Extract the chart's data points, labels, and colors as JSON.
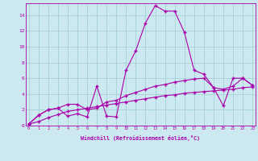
{
  "xlabel": "Windchill (Refroidissement éolien,°C)",
  "bg_color": "#cce8f0",
  "line_color": "#aa00aa",
  "x_values": [
    0,
    1,
    2,
    3,
    4,
    5,
    6,
    7,
    8,
    9,
    10,
    11,
    12,
    13,
    14,
    15,
    16,
    17,
    18,
    19,
    20,
    21,
    22,
    23
  ],
  "line1": [
    0.2,
    1.3,
    2.0,
    2.2,
    1.2,
    1.5,
    1.1,
    5.0,
    1.2,
    1.1,
    7.0,
    9.5,
    13.0,
    15.2,
    14.5,
    14.5,
    11.8,
    7.0,
    6.5,
    4.8,
    2.5,
    6.0,
    6.0,
    5.1
  ],
  "line2": [
    0.2,
    1.3,
    2.0,
    2.2,
    2.7,
    2.7,
    2.0,
    2.2,
    3.0,
    3.2,
    3.8,
    4.2,
    4.6,
    5.0,
    5.2,
    5.5,
    5.7,
    5.9,
    6.0,
    4.8,
    4.6,
    5.0,
    6.0,
    5.1
  ],
  "line3": [
    0.2,
    0.5,
    1.0,
    1.4,
    1.8,
    2.0,
    2.2,
    2.4,
    2.6,
    2.8,
    3.0,
    3.2,
    3.4,
    3.6,
    3.8,
    3.9,
    4.1,
    4.2,
    4.3,
    4.4,
    4.5,
    4.6,
    4.8,
    4.9
  ],
  "ylim": [
    0,
    15.5
  ],
  "xlim": [
    -0.3,
    23.3
  ],
  "yticks": [
    0,
    2,
    4,
    6,
    8,
    10,
    12,
    14
  ],
  "xticks": [
    0,
    1,
    2,
    3,
    4,
    5,
    6,
    7,
    8,
    9,
    10,
    11,
    12,
    13,
    14,
    15,
    16,
    17,
    18,
    19,
    20,
    21,
    22,
    23
  ],
  "grid_color": "#9ecfcf",
  "marker": "+"
}
